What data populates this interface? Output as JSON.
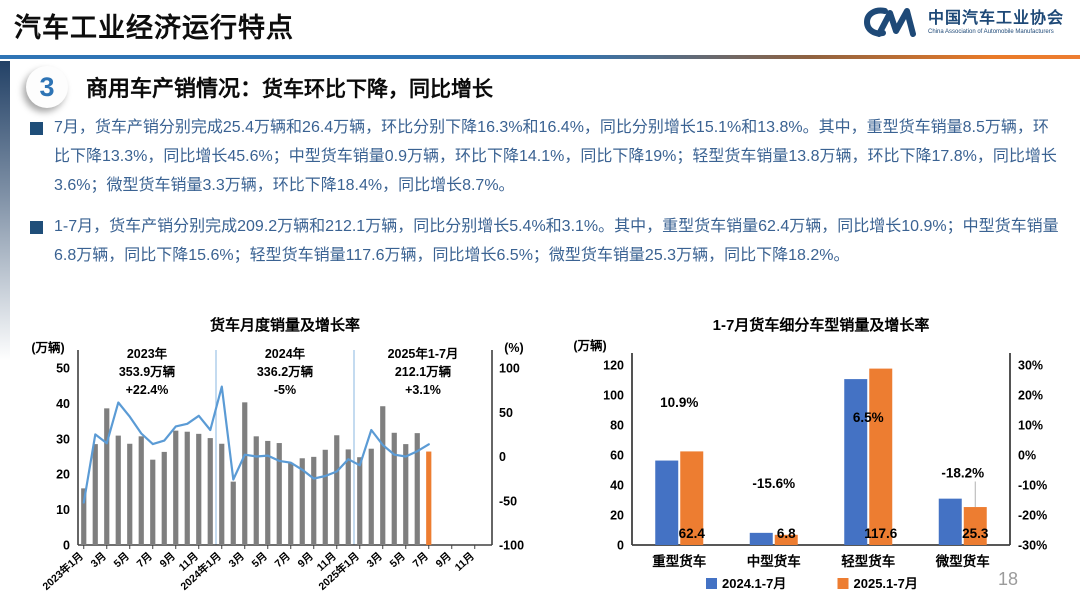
{
  "header": {
    "title": "汽车工业经济运行特点",
    "logo_mark": "CM",
    "org_name": "中国汽车工业协会",
    "org_sub": "China Association of Automobile Manufacturers"
  },
  "section": {
    "number": "3",
    "heading_prefix": "商用车产销情况：",
    "heading_emphasis": "货车环比下降，同比增长"
  },
  "bullets": [
    "7月，货车产销分别完成25.4万辆和26.4万辆，环比分别下降16.3%和16.4%，同比分别增长15.1%和13.8%。其中，重型货车销量8.5万辆，环比下降13.3%，同比增长45.6%；中型货车销量0.9万辆，环比下降14.1%，同比下降19%；轻型货车销量13.8万辆，环比下降17.8%，同比增长3.6%；微型货车销量3.3万辆，环比下降18.4%，同比增长8.7%。",
    "1-7月，货车产销分别完成209.2万辆和212.1万辆，同比分别增长5.4%和3.1%。其中，重型货车销量62.4万辆，同比增长10.9%；中型货车销量6.8万辆，同比下降15.6%；轻型货车销量117.6万辆，同比增长6.5%；微型货车销量25.3万辆，同比下降18.2%。"
  ],
  "page_number": "18",
  "colors": {
    "accent_blue": "#2e74b5",
    "accent_orange": "#ed7d31",
    "series_blue": "#4472c4",
    "series_orange": "#ed7d31",
    "bar_gray": "#7f7f7f",
    "line_blue": "#5b9bd5",
    "divider_blue": "#9dc3e6",
    "negative_red": "#ff0000",
    "bullet_text": "#3a6292"
  },
  "chart_data": [
    {
      "type": "combo_bar_line",
      "title": "货车月度销量及增长率",
      "left_axis": {
        "unit": "(万辆)",
        "min": 0,
        "max": 50,
        "step": 10,
        "ticks": [
          "0",
          "10",
          "20",
          "30",
          "40",
          "50"
        ]
      },
      "right_axis": {
        "unit": "(%)",
        "min": -100,
        "max": 100,
        "step": 50,
        "ticks": [
          "-100",
          "-50",
          "0",
          "50",
          "100"
        ]
      },
      "x_tick_labels": [
        "2023年1月",
        "3月",
        "5月",
        "7月",
        "9月",
        "11月",
        "2024年1月",
        "3月",
        "5月",
        "7月",
        "9月",
        "11月",
        "2025年1月",
        "3月",
        "5月",
        "7月",
        "9月",
        "11月"
      ],
      "total_slots": 36,
      "dividers_after": [
        12,
        24
      ],
      "bar_series": {
        "name": "月度销量(万辆)",
        "color": "#7f7f7f",
        "last_color": "#ed7d31",
        "values": [
          16,
          28.5,
          38.6,
          30.9,
          28.6,
          30.7,
          24.1,
          26.3,
          32.3,
          32,
          31.4,
          30.2,
          28.6,
          17.9,
          40.3,
          30.7,
          29.4,
          28.8,
          23.2,
          24.5,
          24.9,
          26.9,
          31,
          27,
          24.8,
          27.2,
          39.2,
          31.7,
          28.5,
          31.6,
          26.4
        ]
      },
      "line_series": {
        "name": "同比增长率(%)",
        "color": "#5b9bd5",
        "values": [
          -52,
          25,
          15,
          61,
          45,
          26,
          14,
          18,
          34,
          37,
          46,
          30,
          79,
          -26,
          2,
          0,
          1,
          -5,
          -7,
          -15,
          -25,
          -22,
          -17,
          -3,
          -10,
          30,
          13,
          2,
          0,
          6,
          13.8
        ]
      },
      "annotations": [
        {
          "line1": "2023年",
          "line2": "353.9万辆",
          "line3": "+22.4%",
          "line3_color": "#000000"
        },
        {
          "line1": "2024年",
          "line2": "336.2万辆",
          "line3": "-5%",
          "line3_color": "#ff0000"
        },
        {
          "line1": "2025年1-7月",
          "line2": "212.1万辆",
          "line3": "+3.1%",
          "line3_color": "#000000"
        }
      ]
    },
    {
      "type": "bar",
      "title": "1-7月货车细分车型销量及增长率",
      "left_axis": {
        "unit": "(万辆)",
        "min": 0,
        "max": 120,
        "step": 20,
        "ticks": [
          "0",
          "20",
          "40",
          "60",
          "80",
          "100",
          "120"
        ]
      },
      "right_axis": {
        "min": -30,
        "max": 30,
        "step": 10,
        "ticks": [
          "-30%",
          "-20%",
          "-10%",
          "0%",
          "10%",
          "20%",
          "30%"
        ]
      },
      "categories": [
        "重型货车",
        "中型货车",
        "轻型货车",
        "微型货车"
      ],
      "series": [
        {
          "name": "2024.1-7月",
          "color": "#4472c4",
          "values": [
            56.3,
            8.1,
            110.6,
            30.9
          ]
        },
        {
          "name": "2025.1-7月",
          "color": "#ed7d31",
          "values": [
            62.4,
            6.8,
            117.6,
            25.3
          ]
        }
      ],
      "growth_labels": [
        {
          "text": "10.9%",
          "color": "#000000",
          "y": 92
        },
        {
          "text": "-15.6%",
          "color": "#ff0000",
          "y": 38
        },
        {
          "text": "6.5%",
          "color": "#000000",
          "y": 82
        },
        {
          "text": "-18.2%",
          "color": "#ff0000",
          "y": 45,
          "leader": true
        }
      ],
      "value_labels": [
        "62.4",
        "6.8",
        "117.6",
        "25.3"
      ]
    }
  ]
}
